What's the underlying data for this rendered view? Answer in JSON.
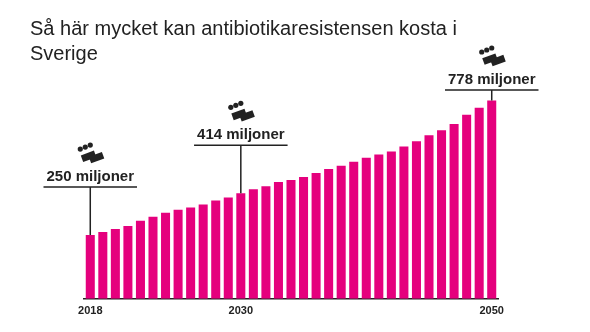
{
  "chart_data": {
    "type": "bar",
    "title": "Så här mycket kan antibiotikaresistensen kosta i Sverige",
    "categories": [
      "2018",
      null,
      null,
      null,
      null,
      null,
      null,
      null,
      null,
      null,
      null,
      null,
      "2030",
      null,
      null,
      null,
      null,
      null,
      null,
      null,
      null,
      null,
      null,
      null,
      null,
      null,
      null,
      null,
      null,
      null,
      null,
      null,
      "2050"
    ],
    "values": [
      250,
      262,
      274,
      286,
      306,
      322,
      338,
      350,
      358,
      370,
      386,
      398,
      414,
      430,
      442,
      458,
      466,
      478,
      494,
      510,
      522,
      538,
      554,
      566,
      578,
      598,
      618,
      642,
      662,
      686,
      722,
      750,
      778
    ],
    "color": "#e5007d",
    "ylim": [
      0,
      800
    ],
    "grid": false,
    "tick_labels": "x",
    "annotations": [
      {
        "x": "2018",
        "text": "250 miljoner"
      },
      {
        "x": "2030",
        "text": "414 miljoner"
      },
      {
        "x": "2050",
        "text": "778 miljoner"
      }
    ]
  }
}
